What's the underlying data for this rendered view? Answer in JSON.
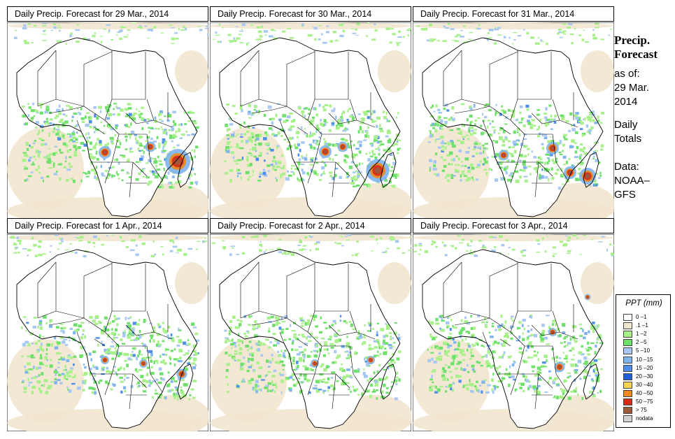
{
  "panels": [
    {
      "title": "Daily Precip. Forecast for  29 Mar., 2014"
    },
    {
      "title": "Daily Precip. Forecast for  30 Mar., 2014"
    },
    {
      "title": "Daily Precip. Forecast for  31 Mar., 2014"
    },
    {
      "title": "Daily Precip. Forecast for  1 Apr., 2014"
    },
    {
      "title": "Daily Precip. Forecast for  2 Apr., 2014"
    },
    {
      "title": "Daily Precip. Forecast for  3 Apr., 2014"
    }
  ],
  "side": {
    "heading_line1": "Precip.",
    "heading_line2": "Forecast",
    "asof_line1": "as of:",
    "asof_line2": "29 Mar.",
    "asof_line3": "2014",
    "totals_line1": "Daily",
    "totals_line2": "Totals",
    "data_line1": "Data:",
    "data_line2": "NOAA–",
    "data_line3": "GFS"
  },
  "legend": {
    "title": "PPT (mm)",
    "items": [
      {
        "label": "0 –1",
        "color": "#ffffff"
      },
      {
        "label": ".1 –1",
        "color": "#f2e6cf"
      },
      {
        "label": "1 –2",
        "color": "#a8f08a"
      },
      {
        "label": "2 –5",
        "color": "#6fe06b"
      },
      {
        "label": "5 –10",
        "color": "#a6c8f2"
      },
      {
        "label": "10 –15",
        "color": "#7fb4ee"
      },
      {
        "label": "15 –20",
        "color": "#4f8ee8"
      },
      {
        "label": "20 –30",
        "color": "#1f5fd8"
      },
      {
        "label": "30 –40",
        "color": "#f6d255"
      },
      {
        "label": "40 –50",
        "color": "#f08a18"
      },
      {
        "label": "50 –75",
        "color": "#d42a18"
      },
      {
        "label": "> 75",
        "color": "#9a5a3c"
      },
      {
        "label": "nodata",
        "color": "#d2d2d2"
      }
    ]
  }
}
